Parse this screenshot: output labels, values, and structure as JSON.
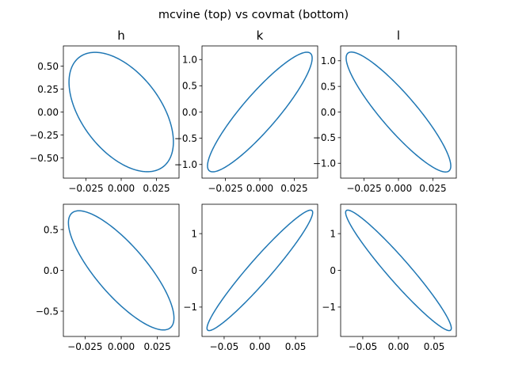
{
  "suptitle": "mcvine (top) vs covmat (bottom)",
  "colors": {
    "line": "#1f77b4"
  },
  "chart_data": [
    {
      "type": "line",
      "row": 1,
      "col": 1,
      "title": "h",
      "xlim": [
        -0.041,
        0.041
      ],
      "ylim": [
        -0.72,
        0.72
      ],
      "xticks": [
        -0.025,
        0.0,
        0.025
      ],
      "xticklabels": [
        "−0.025",
        "0.000",
        "0.025"
      ],
      "yticks": [
        -0.5,
        -0.25,
        0.0,
        0.25,
        0.5
      ],
      "yticklabels": [
        "−0.50",
        "−0.25",
        "0.00",
        "0.25",
        "0.50"
      ],
      "ellipse": {
        "sx": 0.037,
        "sy": 0.65,
        "rho": -0.5
      }
    },
    {
      "type": "line",
      "row": 1,
      "col": 2,
      "title": "k",
      "xlim": [
        -0.042,
        0.042
      ],
      "ylim": [
        -1.26,
        1.26
      ],
      "xticks": [
        -0.025,
        0.0,
        0.025
      ],
      "xticklabels": [
        "−0.025",
        "0.000",
        "0.025"
      ],
      "yticks": [
        -1.0,
        -0.5,
        0.0,
        0.5,
        1.0
      ],
      "yticklabels": [
        "−1.0",
        "−0.5",
        "0.0",
        "0.5",
        "1.0"
      ],
      "ellipse": {
        "sx": 0.038,
        "sy": 1.14,
        "rho": 0.9
      }
    },
    {
      "type": "line",
      "row": 1,
      "col": 3,
      "title": "l",
      "xlim": [
        -0.042,
        0.042
      ],
      "ylim": [
        -1.29,
        1.29
      ],
      "xticks": [
        -0.025,
        0.0,
        0.025
      ],
      "xticklabels": [
        "−0.025",
        "0.000",
        "0.025"
      ],
      "yticks": [
        -1.0,
        -0.5,
        0.0,
        0.5,
        1.0
      ],
      "yticklabels": [
        "−1.0",
        "−0.5",
        "0.0",
        "0.5",
        "1.0"
      ],
      "ellipse": {
        "sx": 0.038,
        "sy": 1.17,
        "rho": -0.9
      }
    },
    {
      "type": "line",
      "row": 2,
      "col": 1,
      "title": "",
      "xlim": [
        -0.04,
        0.04
      ],
      "ylim": [
        -0.81,
        0.81
      ],
      "xticks": [
        -0.025,
        0.0,
        0.025
      ],
      "xticklabels": [
        "−0.025",
        "0.000",
        "0.025"
      ],
      "yticks": [
        -0.5,
        0.0,
        0.5
      ],
      "yticklabels": [
        "−0.5",
        "0.0",
        "0.5"
      ],
      "ellipse": {
        "sx": 0.0365,
        "sy": 0.73,
        "rho": -0.8
      }
    },
    {
      "type": "line",
      "row": 2,
      "col": 2,
      "title": "",
      "xlim": [
        -0.081,
        0.081
      ],
      "ylim": [
        -1.8,
        1.8
      ],
      "xticks": [
        -0.05,
        0.0,
        0.05
      ],
      "xticklabels": [
        "−0.05",
        "0.00",
        "0.05"
      ],
      "yticks": [
        -1,
        0,
        1
      ],
      "yticklabels": [
        "−1",
        "0",
        "1"
      ],
      "ellipse": {
        "sx": 0.074,
        "sy": 1.64,
        "rho": 0.96
      }
    },
    {
      "type": "line",
      "row": 2,
      "col": 3,
      "title": "",
      "xlim": [
        -0.081,
        0.081
      ],
      "ylim": [
        -1.8,
        1.8
      ],
      "xticks": [
        -0.05,
        0.0,
        0.05
      ],
      "xticklabels": [
        "−0.05",
        "0.00",
        "0.05"
      ],
      "yticks": [
        -1,
        0,
        1
      ],
      "yticklabels": [
        "−1",
        "0",
        "1"
      ],
      "ellipse": {
        "sx": 0.074,
        "sy": 1.64,
        "rho": -0.96
      }
    }
  ]
}
